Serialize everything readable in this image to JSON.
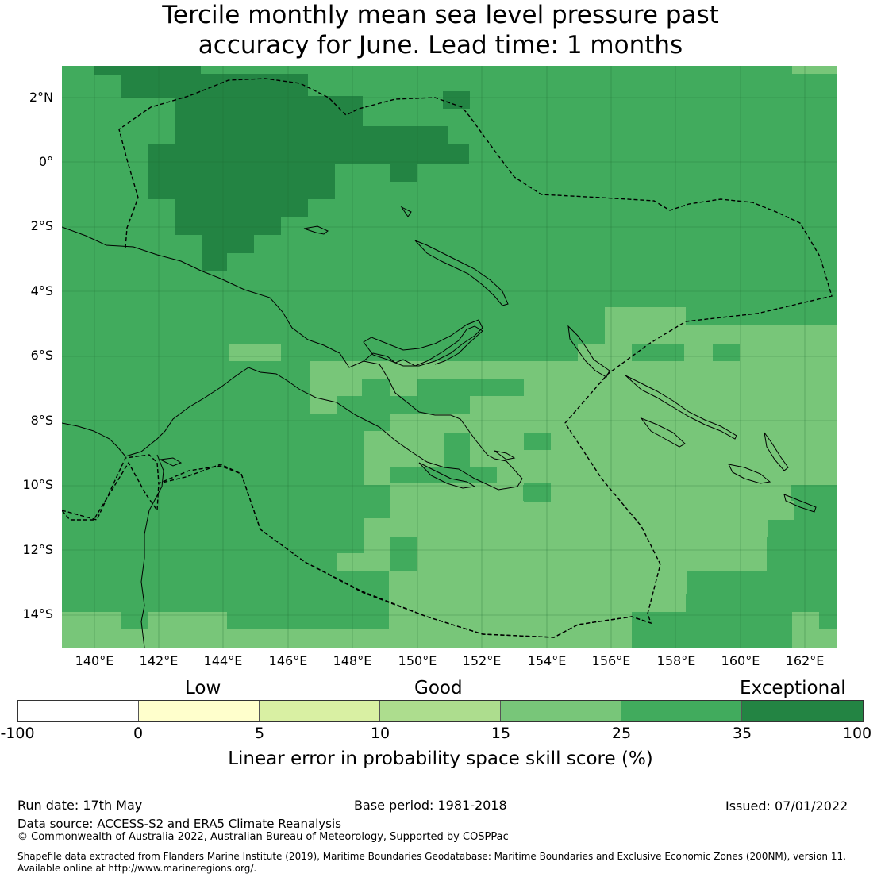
{
  "title_line1": "Tercile monthly mean sea level pressure past",
  "title_line2": "accuracy for June. Lead time: 1 months",
  "map": {
    "lat_labels": [
      "2°N",
      "0°",
      "2°S",
      "4°S",
      "6°S",
      "8°S",
      "10°S",
      "12°S",
      "14°S"
    ],
    "lon_labels": [
      "140°E",
      "142°E",
      "144°E",
      "146°E",
      "148°E",
      "150°E",
      "152°E",
      "154°E",
      "156°E",
      "158°E",
      "160°E",
      "162°E"
    ],
    "extent": {
      "lon_min": 139.0,
      "lon_max": 163.0,
      "lat_min": -15.0,
      "lat_max": 3.0
    },
    "colors": {
      "exceptional": "#238443",
      "high": "#41ab5d",
      "good": "#78c679",
      "ocean_grid": "#1f6b33"
    }
  },
  "legend": {
    "categories": [
      "Low",
      "Good",
      "Exceptional"
    ],
    "ticks": [
      "-100",
      "0",
      "5",
      "10",
      "15",
      "25",
      "35",
      "100"
    ],
    "colors": [
      "#ffffff",
      "#ffffcc",
      "#d9f0a3",
      "#addd8e",
      "#78c679",
      "#41ab5d",
      "#238443"
    ],
    "label": "Linear error in probability space skill score (%)"
  },
  "footer": {
    "run_date": "Run date: 17th May",
    "base_period": "Base period: 1981-2018",
    "issued": "Issued: 07/01/2022",
    "data_source": "Data source: ACCESS-S2 and ERA5 Climate Reanalysis",
    "copyright": "© Commonwealth of Australia 2022, Australian Bureau of Meteorology, Supported by COSPPac",
    "shapefile_line1": "Shapefile data extracted from Flanders Marine Institute (2019), Maritime Boundaries Geodatabase: Maritime Boundaries and Exclusive Economic Zones (200NM), version 11.",
    "shapefile_line2": "Available online at http://www.marineregions.org/."
  }
}
